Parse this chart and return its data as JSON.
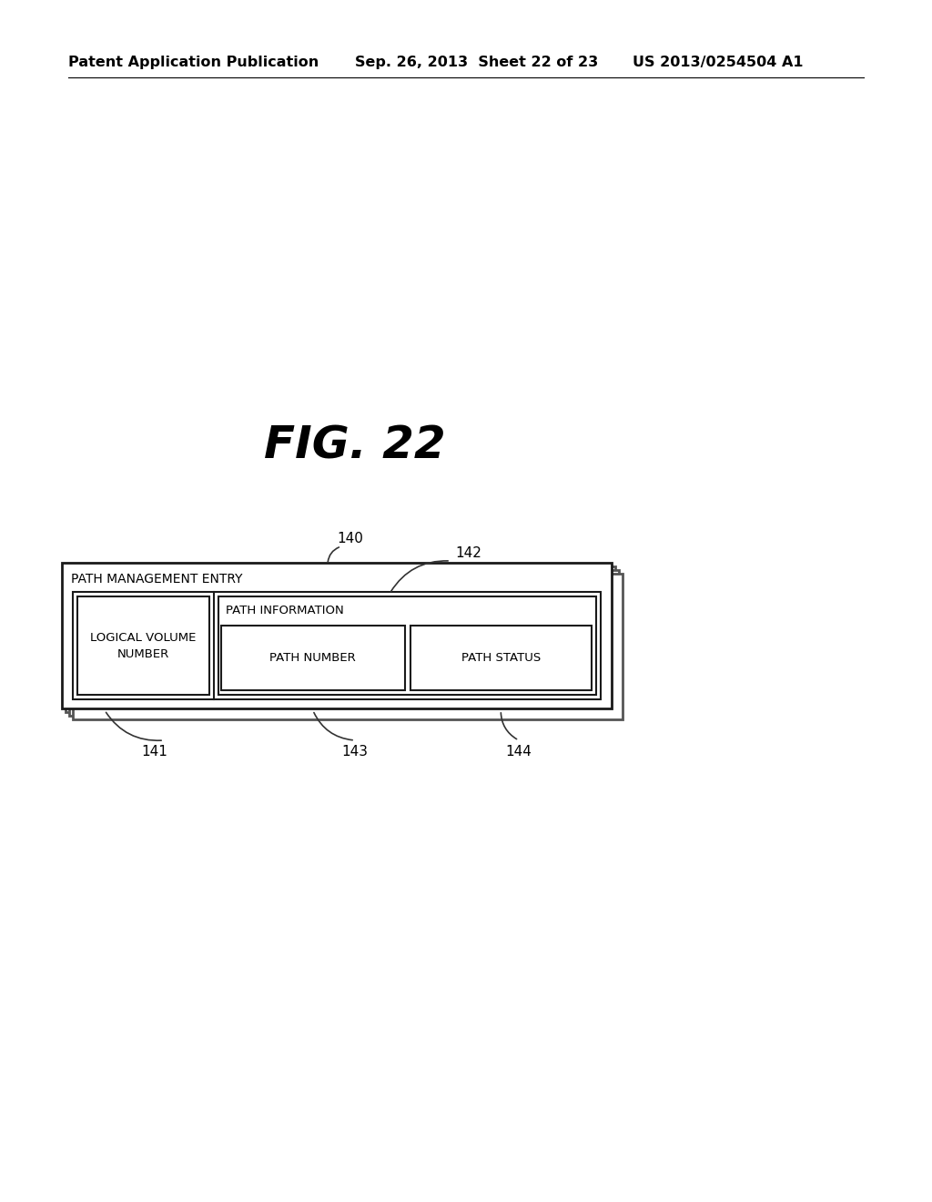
{
  "background_color": "#ffffff",
  "header_line1": "Patent Application Publication",
  "header_line2": "Sep. 26, 2013  Sheet 22 of 23",
  "header_line3": "US 2013/0254504 A1",
  "fig_title": "FIG. 22",
  "label_140": "140",
  "label_141": "141",
  "label_142": "142",
  "label_143": "143",
  "label_144": "144",
  "text_path_mgmt": "PATH MANAGEMENT ENTRY",
  "text_path_info": "PATH INFORMATION",
  "text_logical_vol": "LOGICAL VOLUME\nNUMBER",
  "text_path_number": "PATH NUMBER",
  "text_path_status": "PATH STATUS"
}
